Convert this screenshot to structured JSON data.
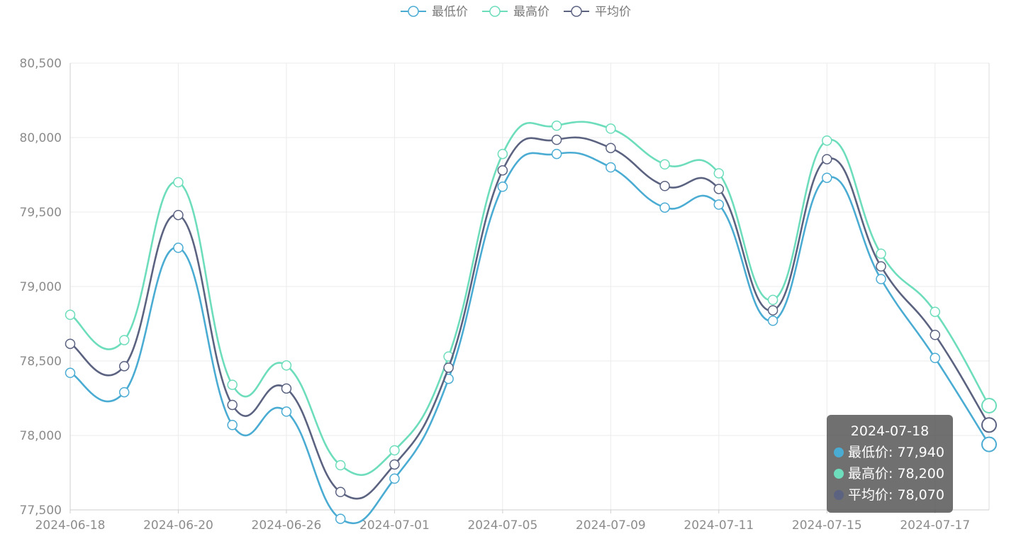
{
  "legend": {
    "items": [
      {
        "label": "最低价",
        "color": "#4bacd3"
      },
      {
        "label": "最高价",
        "color": "#6dddbb"
      },
      {
        "label": "平均价",
        "color": "#5b6381"
      }
    ]
  },
  "tooltip": {
    "date": "2024-07-18",
    "rows": [
      {
        "label": "最低价: 77,940",
        "color": "#4bacd3"
      },
      {
        "label": "最高价: 78,200",
        "color": "#6dddbb"
      },
      {
        "label": "平均价: 78,070",
        "color": "#5b6381"
      }
    ]
  },
  "chart_data": {
    "type": "line",
    "title": "",
    "xlabel": "",
    "ylabel": "",
    "ylim": [
      77500,
      80500
    ],
    "yticks": [
      77500,
      78000,
      78500,
      79000,
      79500,
      80000,
      80500
    ],
    "ytick_labels": [
      "77,500",
      "78,000",
      "78,500",
      "79,000",
      "79,500",
      "80,000",
      "80,500"
    ],
    "xtick_labels": [
      "2024-06-18",
      "2024-06-20",
      "2024-06-26",
      "2024-07-01",
      "2024-07-05",
      "2024-07-09",
      "2024-07-11",
      "2024-07-15",
      "2024-07-17"
    ],
    "x": [
      "2024-06-18",
      "2024-06-19",
      "2024-06-20",
      "2024-06-25",
      "2024-06-26",
      "2024-06-27",
      "2024-07-01",
      "2024-07-02",
      "2024-07-05",
      "2024-07-08",
      "2024-07-09",
      "2024-07-10",
      "2024-07-11",
      "2024-07-12",
      "2024-07-15",
      "2024-07-16",
      "2024-07-17",
      "2024-07-18"
    ],
    "series": [
      {
        "name": "最低价",
        "color": "#4bacd3",
        "values": [
          78420,
          78290,
          79260,
          78070,
          78160,
          77440,
          77710,
          78380,
          79670,
          79890,
          79800,
          79530,
          79550,
          78770,
          79730,
          79050,
          78520,
          77940
        ]
      },
      {
        "name": "最高价",
        "color": "#6dddbb",
        "values": [
          78810,
          78640,
          79700,
          78340,
          78470,
          77800,
          77900,
          78530,
          79890,
          80080,
          80060,
          79820,
          79760,
          78910,
          79980,
          79220,
          78830,
          78200
        ]
      },
      {
        "name": "平均价",
        "color": "#5b6381",
        "values": [
          78615,
          78465,
          79480,
          78205,
          78315,
          77620,
          77805,
          78455,
          79780,
          79985,
          79930,
          79675,
          79655,
          78840,
          79855,
          79135,
          78675,
          78070
        ]
      }
    ],
    "grid": true,
    "legend_position": "top-center",
    "highlighted_index": 17
  }
}
